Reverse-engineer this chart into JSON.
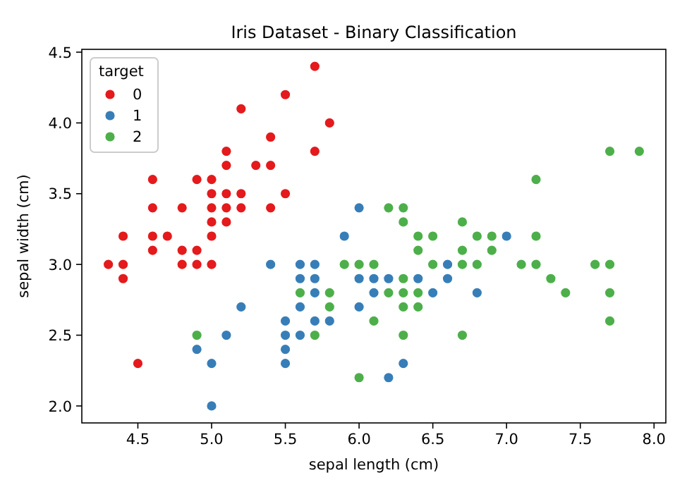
{
  "chart_data": {
    "type": "scatter",
    "title": "Iris Dataset - Binary Classification",
    "xlabel": "sepal length (cm)",
    "ylabel": "sepal width (cm)",
    "legend_title": "target",
    "legend": "top left",
    "marker": "circle",
    "grid": false,
    "xlim": [
      4.12,
      8.08
    ],
    "ylim": [
      1.88,
      4.52
    ],
    "xticks": [
      {
        "value": 4.5,
        "label": "4.5"
      },
      {
        "value": 5,
        "label": "5.0"
      },
      {
        "value": 5.5,
        "label": "5.5"
      },
      {
        "value": 6,
        "label": "6.0"
      },
      {
        "value": 6.5,
        "label": "6.5"
      },
      {
        "value": 7,
        "label": "7.0"
      },
      {
        "value": 7.5,
        "label": "7.5"
      },
      {
        "value": 8,
        "label": "8.0"
      }
    ],
    "yticks": [
      {
        "value": 2,
        "label": "2.0"
      },
      {
        "value": 2.5,
        "label": "2.5"
      },
      {
        "value": 3,
        "label": "3.0"
      },
      {
        "value": 3.5,
        "label": "3.5"
      },
      {
        "value": 4,
        "label": "4.0"
      },
      {
        "value": 4.5,
        "label": "4.5"
      }
    ],
    "series": [
      {
        "name": "0",
        "color": "#e41a1c",
        "x": [
          5.1,
          4.9,
          4.7,
          4.6,
          5.0,
          5.4,
          4.6,
          5.0,
          4.4,
          4.9,
          5.4,
          4.8,
          4.8,
          4.3,
          5.8,
          5.7,
          5.7,
          5.1,
          5.4,
          5.1,
          4.6,
          5.1,
          5.0,
          5.2,
          5.2,
          4.8,
          5.2,
          5.5,
          5.0,
          5.5,
          4.9,
          4.4,
          5.1,
          5.0,
          4.5,
          4.4,
          4.6,
          5.3,
          5.0
        ],
        "values": [
          3.5,
          3.0,
          3.2,
          3.1,
          3.6,
          3.9,
          3.4,
          3.4,
          2.9,
          3.1,
          3.7,
          3.4,
          3.0,
          3.0,
          4.0,
          4.4,
          3.8,
          3.8,
          3.4,
          3.7,
          3.6,
          3.3,
          3.0,
          3.5,
          3.4,
          3.1,
          4.1,
          4.2,
          3.2,
          3.5,
          3.6,
          3.0,
          3.4,
          3.5,
          2.3,
          3.2,
          3.2,
          3.7,
          3.3
        ]
      },
      {
        "name": "1",
        "color": "#377eb8",
        "x": [
          7.0,
          5.5,
          6.5,
          5.7,
          4.9,
          6.6,
          5.2,
          5.0,
          6.1,
          5.6,
          5.6,
          6.2,
          5.6,
          5.9,
          6.1,
          6.4,
          6.6,
          6.8,
          6.0,
          5.7,
          5.5,
          6.0,
          5.4,
          6.0,
          6.3,
          5.5,
          5.5,
          5.8,
          5.0,
          5.6,
          5.7,
          5.7,
          6.2,
          5.1
        ],
        "values": [
          3.2,
          2.3,
          2.8,
          2.8,
          2.4,
          2.9,
          2.7,
          2.0,
          2.9,
          2.9,
          3.0,
          2.2,
          2.5,
          3.2,
          2.8,
          2.9,
          3.0,
          2.8,
          2.9,
          2.6,
          2.4,
          2.7,
          3.0,
          3.4,
          2.3,
          2.5,
          2.6,
          2.6,
          2.3,
          2.7,
          3.0,
          2.9,
          2.9,
          2.5
        ]
      },
      {
        "name": "2",
        "color": "#4daf4a",
        "x": [
          6.3,
          5.8,
          7.1,
          6.3,
          6.5,
          7.6,
          4.9,
          7.3,
          6.7,
          7.2,
          6.5,
          6.4,
          6.8,
          5.7,
          5.8,
          6.4,
          7.7,
          7.7,
          6.0,
          6.9,
          5.6,
          7.7,
          6.3,
          6.7,
          7.2,
          6.2,
          6.1,
          6.4,
          7.2,
          7.4,
          7.9,
          6.3,
          6.1,
          7.7,
          6.3,
          6.4,
          6.0,
          6.9,
          6.7,
          6.8,
          6.7,
          6.3,
          6.2,
          5.9
        ],
        "values": [
          3.3,
          2.7,
          3.0,
          2.9,
          3.0,
          3.0,
          2.5,
          2.9,
          2.5,
          3.6,
          3.2,
          2.7,
          3.0,
          2.5,
          2.8,
          3.2,
          3.8,
          2.6,
          2.2,
          3.2,
          2.8,
          2.8,
          2.7,
          3.3,
          3.2,
          2.8,
          3.0,
          2.8,
          3.0,
          2.8,
          3.8,
          2.8,
          2.6,
          3.0,
          3.4,
          3.1,
          3.0,
          3.1,
          3.1,
          3.2,
          3.0,
          2.5,
          3.4,
          3.0
        ]
      }
    ]
  }
}
